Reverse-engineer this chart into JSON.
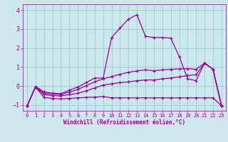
{
  "xlabel": "Windchill (Refroidissement éolien,°C)",
  "background_color": "#cce8ee",
  "grid_color": "#99cccc",
  "line_color": "#990099",
  "xlim": [
    -0.5,
    23.5
  ],
  "ylim": [
    -1.3,
    4.3
  ],
  "yticks": [
    -1,
    0,
    1,
    2,
    3,
    4
  ],
  "xticks": [
    0,
    1,
    2,
    3,
    4,
    5,
    6,
    7,
    8,
    9,
    10,
    11,
    12,
    13,
    14,
    15,
    16,
    17,
    18,
    19,
    20,
    21,
    22,
    23
  ],
  "series": [
    {
      "x": [
        0,
        1,
        2,
        3,
        4,
        5,
        6,
        7,
        8,
        9,
        10,
        11,
        12,
        13,
        14,
        15,
        16,
        17,
        18,
        19,
        20,
        21,
        22,
        23
      ],
      "y": [
        -1.05,
        -0.05,
        -0.6,
        -0.65,
        -0.68,
        -0.65,
        -0.62,
        -0.6,
        -0.58,
        -0.55,
        -0.62,
        -0.62,
        -0.62,
        -0.62,
        -0.62,
        -0.62,
        -0.62,
        -0.62,
        -0.62,
        -0.62,
        -0.62,
        -0.62,
        -0.62,
        -1.05
      ]
    },
    {
      "x": [
        0,
        1,
        2,
        3,
        4,
        5,
        6,
        7,
        8,
        9,
        10,
        11,
        12,
        13,
        14,
        15,
        16,
        17,
        18,
        19,
        20,
        21,
        22,
        23
      ],
      "y": [
        -1.05,
        -0.05,
        -0.45,
        -0.5,
        -0.52,
        -0.45,
        -0.38,
        -0.25,
        -0.1,
        0.05,
        0.12,
        0.18,
        0.22,
        0.28,
        0.32,
        0.32,
        0.38,
        0.42,
        0.48,
        0.55,
        0.6,
        1.2,
        0.88,
        -1.05
      ]
    },
    {
      "x": [
        0,
        1,
        2,
        3,
        4,
        5,
        6,
        7,
        8,
        9,
        10,
        11,
        12,
        13,
        14,
        15,
        16,
        17,
        18,
        19,
        20,
        21,
        22,
        23
      ],
      "y": [
        -1.05,
        -0.05,
        -0.38,
        -0.42,
        -0.44,
        -0.32,
        -0.18,
        0.02,
        0.22,
        0.38,
        0.5,
        0.62,
        0.72,
        0.8,
        0.85,
        0.8,
        0.85,
        0.88,
        0.9,
        0.92,
        0.88,
        1.2,
        0.88,
        -1.05
      ]
    },
    {
      "x": [
        0,
        1,
        2,
        3,
        4,
        5,
        6,
        7,
        8,
        9,
        10,
        11,
        12,
        13,
        14,
        15,
        16,
        17,
        18,
        19,
        20,
        21,
        22,
        23
      ],
      "y": [
        -1.05,
        -0.02,
        -0.3,
        -0.38,
        -0.4,
        -0.22,
        -0.05,
        0.18,
        0.42,
        0.42,
        2.55,
        3.05,
        3.52,
        3.75,
        2.62,
        2.55,
        2.55,
        2.52,
        1.55,
        0.38,
        0.28,
        1.22,
        0.88,
        -1.05
      ]
    }
  ]
}
